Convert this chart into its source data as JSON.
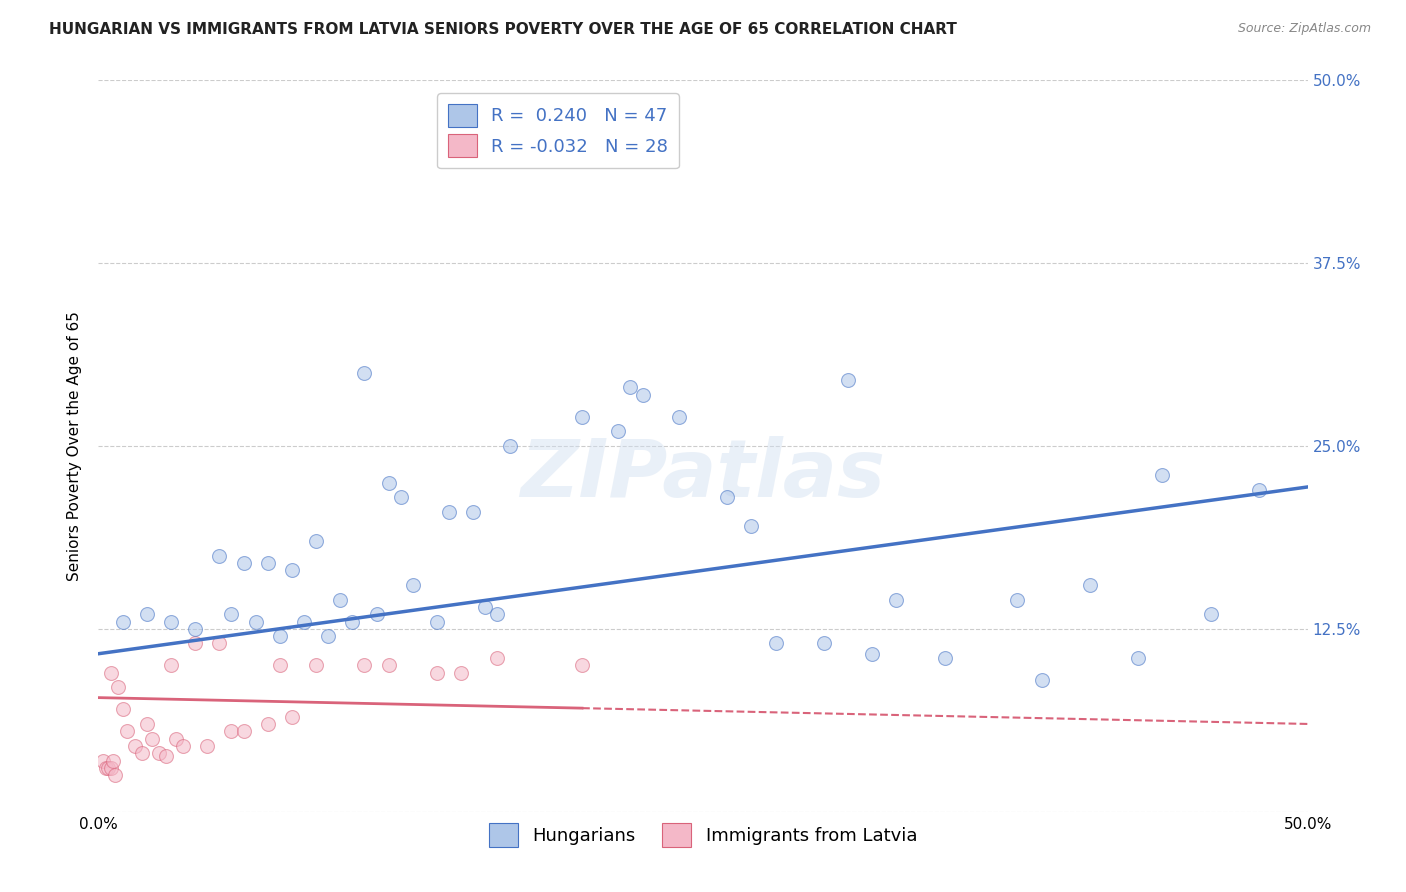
{
  "title": "HUNGARIAN VS IMMIGRANTS FROM LATVIA SENIORS POVERTY OVER THE AGE OF 65 CORRELATION CHART",
  "source": "Source: ZipAtlas.com",
  "ylabel": "Seniors Poverty Over the Age of 65",
  "xlim": [
    0.0,
    0.5
  ],
  "ylim": [
    0.0,
    0.5
  ],
  "yticks": [
    0.0,
    0.125,
    0.25,
    0.375,
    0.5
  ],
  "ytick_labels": [
    "",
    "12.5%",
    "25.0%",
    "37.5%",
    "50.0%"
  ],
  "legend_blue_r": "R =  0.240",
  "legend_blue_n": "N = 47",
  "legend_pink_r": "R = -0.032",
  "legend_pink_n": "N = 28",
  "blue_color": "#aec6e8",
  "blue_line_color": "#4472c4",
  "pink_color": "#f4b8c8",
  "pink_line_color": "#d9637a",
  "text_blue": "#4472c4",
  "background_color": "#ffffff",
  "grid_color": "#cccccc",
  "blue_scatter_x": [
    0.01,
    0.02,
    0.03,
    0.04,
    0.05,
    0.055,
    0.06,
    0.065,
    0.07,
    0.075,
    0.08,
    0.085,
    0.09,
    0.095,
    0.1,
    0.105,
    0.11,
    0.115,
    0.12,
    0.125,
    0.13,
    0.14,
    0.145,
    0.155,
    0.16,
    0.165,
    0.17,
    0.2,
    0.215,
    0.22,
    0.225,
    0.24,
    0.26,
    0.27,
    0.28,
    0.3,
    0.31,
    0.32,
    0.33,
    0.35,
    0.38,
    0.39,
    0.41,
    0.43,
    0.44,
    0.46,
    0.48
  ],
  "blue_scatter_y": [
    0.13,
    0.135,
    0.13,
    0.125,
    0.175,
    0.135,
    0.17,
    0.13,
    0.17,
    0.12,
    0.165,
    0.13,
    0.185,
    0.12,
    0.145,
    0.13,
    0.3,
    0.135,
    0.225,
    0.215,
    0.155,
    0.13,
    0.205,
    0.205,
    0.14,
    0.135,
    0.25,
    0.27,
    0.26,
    0.29,
    0.285,
    0.27,
    0.215,
    0.195,
    0.115,
    0.115,
    0.295,
    0.108,
    0.145,
    0.105,
    0.145,
    0.09,
    0.155,
    0.105,
    0.23,
    0.135,
    0.22
  ],
  "pink_scatter_x": [
    0.005,
    0.008,
    0.01,
    0.012,
    0.015,
    0.018,
    0.02,
    0.022,
    0.025,
    0.028,
    0.03,
    0.032,
    0.035,
    0.04,
    0.045,
    0.05,
    0.055,
    0.06,
    0.07,
    0.075,
    0.08,
    0.09,
    0.11,
    0.12,
    0.14,
    0.15,
    0.165,
    0.2
  ],
  "pink_scatter_y": [
    0.095,
    0.085,
    0.07,
    0.055,
    0.045,
    0.04,
    0.06,
    0.05,
    0.04,
    0.038,
    0.1,
    0.05,
    0.045,
    0.115,
    0.045,
    0.115,
    0.055,
    0.055,
    0.06,
    0.1,
    0.065,
    0.1,
    0.1,
    0.1,
    0.095,
    0.095,
    0.105,
    0.1
  ],
  "pink_extra_x": [
    0.002,
    0.003,
    0.004,
    0.005,
    0.006,
    0.007
  ],
  "pink_extra_y": [
    0.035,
    0.03,
    0.03,
    0.03,
    0.035,
    0.025
  ],
  "blue_line_x": [
    0.0,
    0.5
  ],
  "blue_line_y_start": 0.108,
  "blue_line_y_end": 0.222,
  "pink_line_x": [
    0.0,
    0.5
  ],
  "pink_line_y_start": 0.078,
  "pink_line_y_end": 0.06,
  "pink_line_solid_end": 0.2,
  "pink_line_solid_y_start": 0.078,
  "pink_line_solid_y_at_020": 0.071,
  "marker_size": 100,
  "alpha": 0.55,
  "legend_fontsize": 13,
  "title_fontsize": 11,
  "axis_label_fontsize": 11,
  "tick_fontsize": 11,
  "watermark_text": "ZIPatlas",
  "bottom_legend_labels": [
    "Hungarians",
    "Immigrants from Latvia"
  ]
}
